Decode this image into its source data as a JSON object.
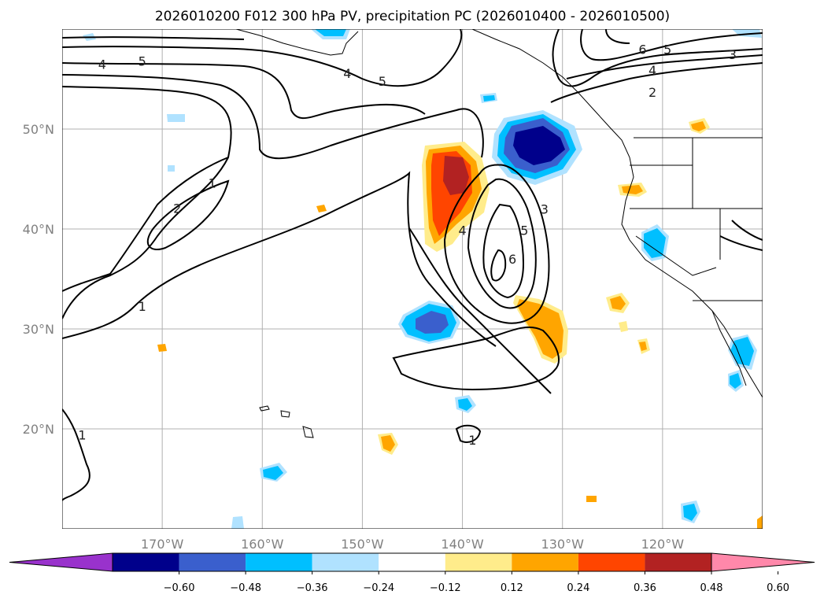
{
  "chart_data": {
    "type": "map",
    "title": "2026010200 F012 300 hPa PV, precipitation PC (2026010400 - 2026010500)",
    "x_axis": {
      "ticks": [
        {
          "value": -170,
          "label": "170°W"
        },
        {
          "value": -160,
          "label": "160°W"
        },
        {
          "value": -150,
          "label": "150°W"
        },
        {
          "value": -140,
          "label": "140°W"
        },
        {
          "value": -130,
          "label": "130°W"
        },
        {
          "value": -120,
          "label": "120°W"
        }
      ],
      "range": [
        -180,
        -110
      ]
    },
    "y_axis": {
      "ticks": [
        {
          "value": 20,
          "label": "20°N"
        },
        {
          "value": 30,
          "label": "30°N"
        },
        {
          "value": 40,
          "label": "40°N"
        },
        {
          "value": 50,
          "label": "50°N"
        }
      ],
      "range": [
        10,
        60
      ]
    },
    "colorbar": {
      "levels": [
        "−0.60",
        "−0.48",
        "−0.36",
        "−0.24",
        "−0.12",
        "0.12",
        "0.24",
        "0.36",
        "0.48",
        "0.60"
      ],
      "colors": [
        "#9932CC",
        "#00008B",
        "#3A5FCD",
        "#00BFFF",
        "#B0E2FF",
        "#FFFFFF",
        "#FFEC8B",
        "#FFA500",
        "#FF4500",
        "#B22222",
        "#FF88AA"
      ]
    },
    "pv_contour_labels": [
      {
        "text": "4",
        "lon": -176,
        "lat": 56.5
      },
      {
        "text": "5",
        "lon": -172,
        "lat": 56.8
      },
      {
        "text": "4",
        "lon": -151.5,
        "lat": 55.6
      },
      {
        "text": "5",
        "lon": -148,
        "lat": 54.8
      },
      {
        "text": "6",
        "lon": -122,
        "lat": 58.0
      },
      {
        "text": "5",
        "lon": -119.5,
        "lat": 58.0
      },
      {
        "text": "3",
        "lon": -113,
        "lat": 57.5
      },
      {
        "text": "4",
        "lon": -121,
        "lat": 55.9
      },
      {
        "text": "2",
        "lon": -121,
        "lat": 53.7
      },
      {
        "text": "1",
        "lon": -165,
        "lat": 44.6
      },
      {
        "text": "2",
        "lon": -168.5,
        "lat": 42.1
      },
      {
        "text": "1",
        "lon": -172,
        "lat": 32.3
      },
      {
        "text": "4",
        "lon": -140,
        "lat": 39.9
      },
      {
        "text": "5",
        "lon": -133.8,
        "lat": 39.9
      },
      {
        "text": "6",
        "lon": -135,
        "lat": 37.0
      },
      {
        "text": "3",
        "lon": -131.8,
        "lat": 42.0
      },
      {
        "text": "1",
        "lon": -178,
        "lat": 19.4
      },
      {
        "text": "1",
        "lon": -139,
        "lat": 18.9
      }
    ]
  }
}
